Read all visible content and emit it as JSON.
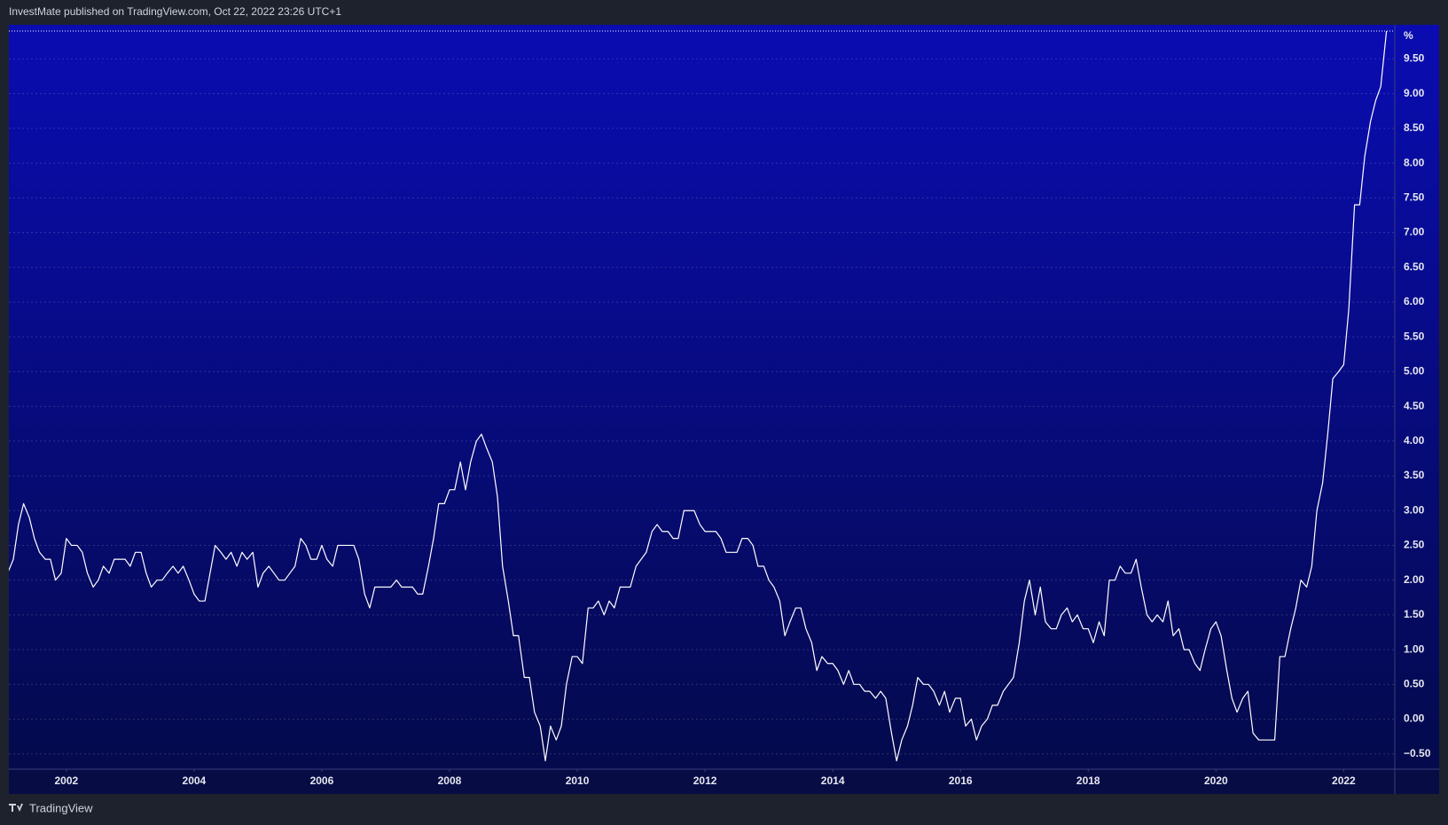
{
  "header": "InvestMate published on TradingView.com, Oct 22, 2022 23:26 UTC+1",
  "footer": {
    "brand": "TradingView"
  },
  "chart_data": {
    "type": "line",
    "unit": "%",
    "color": "#ffffff",
    "grid": true,
    "xlim": [
      2001.1,
      2022.8
    ],
    "ylim": [
      -0.72,
      9.99
    ],
    "xticks": [
      2002,
      2004,
      2006,
      2008,
      2010,
      2012,
      2014,
      2016,
      2018,
      2020,
      2022
    ],
    "yticks": [
      {
        "value": -0.5,
        "label": "−0.50"
      },
      {
        "value": 0,
        "label": "0.00"
      },
      {
        "value": 0.5,
        "label": "0.50"
      },
      {
        "value": 1,
        "label": "1.00"
      },
      {
        "value": 1.5,
        "label": "1.50"
      },
      {
        "value": 2,
        "label": "2.00"
      },
      {
        "value": 2.5,
        "label": "2.50"
      },
      {
        "value": 3,
        "label": "3.00"
      },
      {
        "value": 3.5,
        "label": "3.50"
      },
      {
        "value": 4,
        "label": "4.00"
      },
      {
        "value": 4.5,
        "label": "4.50"
      },
      {
        "value": 5,
        "label": "5.00"
      },
      {
        "value": 5.5,
        "label": "5.50"
      },
      {
        "value": 6,
        "label": "6.00"
      },
      {
        "value": 6.5,
        "label": "6.50"
      },
      {
        "value": 7,
        "label": "7.00"
      },
      {
        "value": 7.5,
        "label": "7.50"
      },
      {
        "value": 8,
        "label": "8.00"
      },
      {
        "value": 8.5,
        "label": "8.50"
      },
      {
        "value": 9,
        "label": "9.00"
      },
      {
        "value": 9.5,
        "label": "9.50"
      }
    ],
    "x": [
      2001.08,
      2001.17,
      2001.25,
      2001.33,
      2001.42,
      2001.5,
      2001.58,
      2001.67,
      2001.75,
      2001.83,
      2001.92,
      2002,
      2002.08,
      2002.17,
      2002.25,
      2002.33,
      2002.42,
      2002.5,
      2002.58,
      2002.67,
      2002.75,
      2002.83,
      2002.92,
      2003,
      2003.08,
      2003.17,
      2003.25,
      2003.33,
      2003.42,
      2003.5,
      2003.58,
      2003.67,
      2003.75,
      2003.83,
      2003.92,
      2004,
      2004.08,
      2004.17,
      2004.25,
      2004.33,
      2004.42,
      2004.5,
      2004.58,
      2004.67,
      2004.75,
      2004.83,
      2004.92,
      2005,
      2005.08,
      2005.17,
      2005.25,
      2005.33,
      2005.42,
      2005.5,
      2005.58,
      2005.67,
      2005.75,
      2005.83,
      2005.92,
      2006,
      2006.08,
      2006.17,
      2006.25,
      2006.33,
      2006.42,
      2006.5,
      2006.58,
      2006.67,
      2006.75,
      2006.83,
      2006.92,
      2007,
      2007.08,
      2007.17,
      2007.25,
      2007.33,
      2007.42,
      2007.5,
      2007.58,
      2007.67,
      2007.75,
      2007.83,
      2007.92,
      2008,
      2008.08,
      2008.17,
      2008.25,
      2008.33,
      2008.42,
      2008.5,
      2008.58,
      2008.67,
      2008.75,
      2008.83,
      2008.92,
      2009,
      2009.08,
      2009.17,
      2009.25,
      2009.33,
      2009.42,
      2009.5,
      2009.58,
      2009.67,
      2009.75,
      2009.83,
      2009.92,
      2010,
      2010.08,
      2010.17,
      2010.25,
      2010.33,
      2010.42,
      2010.5,
      2010.58,
      2010.67,
      2010.75,
      2010.83,
      2010.92,
      2011,
      2011.08,
      2011.17,
      2011.25,
      2011.33,
      2011.42,
      2011.5,
      2011.58,
      2011.67,
      2011.75,
      2011.83,
      2011.92,
      2012,
      2012.08,
      2012.17,
      2012.25,
      2012.33,
      2012.42,
      2012.5,
      2012.58,
      2012.67,
      2012.75,
      2012.83,
      2012.92,
      2013,
      2013.08,
      2013.17,
      2013.25,
      2013.33,
      2013.42,
      2013.5,
      2013.58,
      2013.67,
      2013.75,
      2013.83,
      2013.92,
      2014,
      2014.08,
      2014.17,
      2014.25,
      2014.33,
      2014.42,
      2014.5,
      2014.58,
      2014.67,
      2014.75,
      2014.83,
      2014.92,
      2015,
      2015.08,
      2015.17,
      2015.25,
      2015.33,
      2015.42,
      2015.5,
      2015.58,
      2015.67,
      2015.75,
      2015.83,
      2015.92,
      2016,
      2016.08,
      2016.17,
      2016.25,
      2016.33,
      2016.42,
      2016.5,
      2016.58,
      2016.67,
      2016.75,
      2016.83,
      2016.92,
      2017,
      2017.08,
      2017.17,
      2017.25,
      2017.33,
      2017.42,
      2017.5,
      2017.58,
      2017.67,
      2017.75,
      2017.83,
      2017.92,
      2018,
      2018.08,
      2018.17,
      2018.25,
      2018.33,
      2018.42,
      2018.5,
      2018.58,
      2018.67,
      2018.75,
      2018.83,
      2018.92,
      2019,
      2019.08,
      2019.17,
      2019.25,
      2019.33,
      2019.42,
      2019.5,
      2019.58,
      2019.67,
      2019.75,
      2019.83,
      2019.92,
      2020,
      2020.08,
      2020.17,
      2020.25,
      2020.33,
      2020.42,
      2020.5,
      2020.58,
      2020.67,
      2020.75,
      2020.83,
      2020.92,
      2021,
      2021.08,
      2021.17,
      2021.25,
      2021.33,
      2021.42,
      2021.5,
      2021.58,
      2021.67,
      2021.75,
      2021.83,
      2021.92,
      2022,
      2022.08,
      2022.17,
      2022.25,
      2022.33,
      2022.42,
      2022.5,
      2022.58,
      2022.67
    ],
    "values": [
      2.1,
      2.3,
      2.8,
      3.1,
      2.9,
      2.6,
      2.4,
      2.3,
      2.3,
      2.0,
      2.1,
      2.6,
      2.5,
      2.5,
      2.4,
      2.1,
      1.9,
      2.0,
      2.2,
      2.1,
      2.3,
      2.3,
      2.3,
      2.2,
      2.4,
      2.4,
      2.1,
      1.9,
      2.0,
      2.0,
      2.1,
      2.2,
      2.1,
      2.2,
      2.0,
      1.8,
      1.7,
      1.7,
      2.1,
      2.5,
      2.4,
      2.3,
      2.4,
      2.2,
      2.4,
      2.3,
      2.4,
      1.9,
      2.1,
      2.2,
      2.1,
      2.0,
      2.0,
      2.1,
      2.2,
      2.6,
      2.5,
      2.3,
      2.3,
      2.5,
      2.3,
      2.2,
      2.5,
      2.5,
      2.5,
      2.5,
      2.3,
      1.8,
      1.6,
      1.9,
      1.9,
      1.9,
      1.9,
      2.0,
      1.9,
      1.9,
      1.9,
      1.8,
      1.8,
      2.2,
      2.6,
      3.1,
      3.1,
      3.3,
      3.3,
      3.7,
      3.3,
      3.7,
      4.0,
      4.1,
      3.9,
      3.7,
      3.2,
      2.2,
      1.7,
      1.2,
      1.2,
      0.6,
      0.6,
      0.1,
      -0.1,
      -0.6,
      -0.1,
      -0.3,
      -0.1,
      0.5,
      0.9,
      0.9,
      0.8,
      1.6,
      1.6,
      1.7,
      1.5,
      1.7,
      1.6,
      1.9,
      1.9,
      1.9,
      2.2,
      2.3,
      2.4,
      2.7,
      2.8,
      2.7,
      2.7,
      2.6,
      2.6,
      3.0,
      3.0,
      3.0,
      2.8,
      2.7,
      2.7,
      2.7,
      2.6,
      2.4,
      2.4,
      2.4,
      2.6,
      2.6,
      2.5,
      2.2,
      2.2,
      2.0,
      1.9,
      1.7,
      1.2,
      1.4,
      1.6,
      1.6,
      1.3,
      1.1,
      0.7,
      0.9,
      0.8,
      0.8,
      0.7,
      0.5,
      0.7,
      0.5,
      0.5,
      0.4,
      0.4,
      0.3,
      0.4,
      0.3,
      -0.2,
      -0.6,
      -0.3,
      -0.1,
      0.2,
      0.6,
      0.5,
      0.5,
      0.4,
      0.2,
      0.4,
      0.1,
      0.3,
      0.3,
      -0.1,
      0.0,
      -0.3,
      -0.1,
      0.0,
      0.2,
      0.2,
      0.4,
      0.5,
      0.6,
      1.1,
      1.7,
      2.0,
      1.5,
      1.9,
      1.4,
      1.3,
      1.3,
      1.5,
      1.6,
      1.4,
      1.5,
      1.3,
      1.3,
      1.1,
      1.4,
      1.2,
      2.0,
      2.0,
      2.2,
      2.1,
      2.1,
      2.3,
      1.9,
      1.5,
      1.4,
      1.5,
      1.4,
      1.7,
      1.2,
      1.3,
      1.0,
      1.0,
      0.8,
      0.7,
      1.0,
      1.3,
      1.4,
      1.2,
      0.7,
      0.3,
      0.1,
      0.3,
      0.4,
      -0.2,
      -0.3,
      -0.3,
      -0.3,
      -0.3,
      0.9,
      0.9,
      1.3,
      1.6,
      2.0,
      1.9,
      2.2,
      3.0,
      3.4,
      4.1,
      4.9,
      5.0,
      5.1,
      5.9,
      7.4,
      7.4,
      8.1,
      8.6,
      8.9,
      9.1,
      9.9
    ]
  }
}
